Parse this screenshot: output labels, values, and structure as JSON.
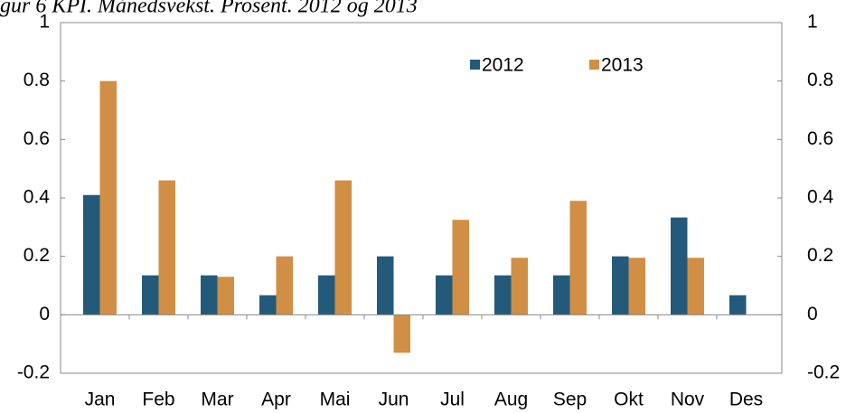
{
  "chart_data": {
    "type": "bar",
    "title": "gur 6 KPI. Månedsvekst. Prosent. 2012 og 2013",
    "categories": [
      "Jan",
      "Feb",
      "Mar",
      "Apr",
      "Mai",
      "Jun",
      "Jul",
      "Aug",
      "Sep",
      "Okt",
      "Nov",
      "Des"
    ],
    "series": [
      {
        "name": "2012",
        "color": "#235a7a",
        "values": [
          0.41,
          0.135,
          0.135,
          0.067,
          0.135,
          0.2,
          0.135,
          0.135,
          0.135,
          0.2,
          0.333,
          0.067
        ]
      },
      {
        "name": "2013",
        "color": "#d08f44",
        "values": [
          0.8,
          0.46,
          0.13,
          0.2,
          0.46,
          -0.13,
          0.325,
          0.195,
          0.39,
          0.195,
          0.195,
          null
        ]
      }
    ],
    "ylim": [
      -0.2,
      1
    ],
    "yticks": [
      -0.2,
      0,
      0.2,
      0.4,
      0.6,
      0.8,
      1
    ],
    "y2lim": [
      -0.2,
      1
    ],
    "y2ticks": [
      -0.2,
      0,
      0.2,
      0.4,
      0.6,
      0.8,
      1
    ],
    "grid": false
  }
}
